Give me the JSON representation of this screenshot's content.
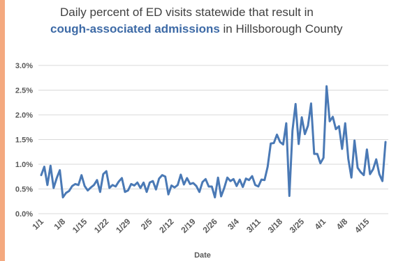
{
  "colors": {
    "accent": "#f4a97f",
    "line": "#4a79b5",
    "title_emphasis": "#3d6aa6",
    "grid": "#d9d9d9"
  },
  "title": {
    "line1": "Daily percent of ED visits statewide that result in",
    "line2_bold": "cough-associated admissions",
    "line2_rest": " in Hillsborough County"
  },
  "chart_data": {
    "type": "line",
    "title": "Daily percent of ED visits statewide that result in cough-associated admissions in Hillsborough County",
    "xlabel": "Date",
    "ylabel": "",
    "ylim": [
      0,
      3.0
    ],
    "yticks": [
      "0.0%",
      "0.5%",
      "1.0%",
      "1.5%",
      "2.0%",
      "2.5%",
      "3.0%"
    ],
    "grid": true,
    "xtick_labels": [
      "1/1",
      "1/8",
      "1/15",
      "1/22",
      "1/29",
      "2/5",
      "2/12",
      "2/19",
      "2/26",
      "3/4",
      "3/11",
      "3/18",
      "3/25",
      "4/1",
      "4/8",
      "4/15"
    ],
    "x_start": "1/1",
    "x_end": "4/20",
    "series": [
      {
        "values": [
          0.78,
          0.95,
          0.58,
          0.97,
          0.52,
          0.72,
          0.88,
          0.33,
          0.42,
          0.46,
          0.56,
          0.6,
          0.58,
          0.78,
          0.56,
          0.47,
          0.53,
          0.58,
          0.68,
          0.44,
          0.8,
          0.86,
          0.52,
          0.58,
          0.55,
          0.65,
          0.72,
          0.44,
          0.47,
          0.6,
          0.57,
          0.63,
          0.52,
          0.63,
          0.44,
          0.63,
          0.66,
          0.49,
          0.71,
          0.78,
          0.75,
          0.39,
          0.57,
          0.53,
          0.58,
          0.79,
          0.59,
          0.72,
          0.6,
          0.62,
          0.56,
          0.44,
          0.64,
          0.7,
          0.55,
          0.55,
          0.33,
          0.73,
          0.35,
          0.52,
          0.73,
          0.66,
          0.7,
          0.56,
          0.69,
          0.54,
          0.71,
          0.68,
          0.76,
          0.58,
          0.55,
          0.69,
          0.68,
          0.95,
          1.42,
          1.43,
          1.6,
          1.45,
          1.4,
          1.83,
          0.36,
          1.68,
          2.22,
          1.41,
          1.95,
          1.61,
          1.78,
          2.23,
          1.21,
          1.21,
          1.02,
          1.13,
          2.58,
          1.87,
          1.96,
          1.71,
          1.77,
          1.31,
          1.83,
          1.11,
          0.73,
          1.48,
          0.93,
          0.84,
          0.78,
          1.3,
          0.8,
          0.9,
          1.1,
          0.8,
          0.66,
          1.45
        ]
      }
    ]
  }
}
